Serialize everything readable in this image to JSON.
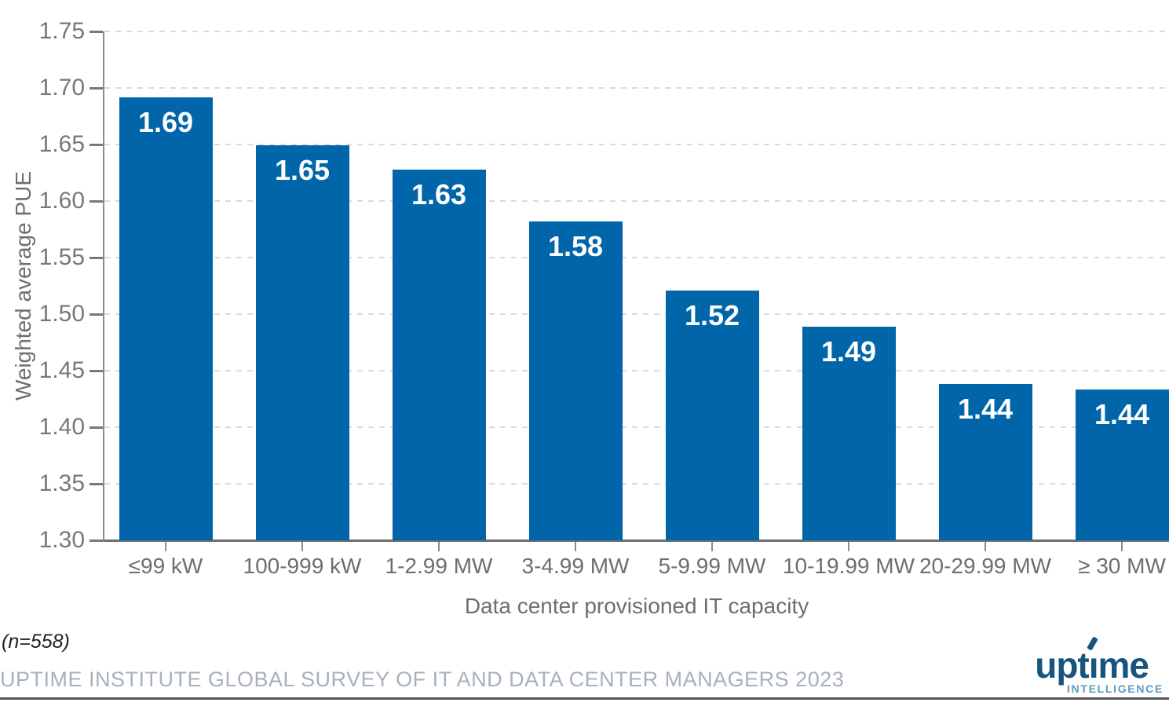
{
  "chart_data": {
    "type": "bar",
    "title": "",
    "categories": [
      "≤99 kW",
      "100-999 kW",
      "1-2.99 MW",
      "3-4.99 MW",
      "5-9.99 MW",
      "10-19.99 MW",
      "20-29.99 MW",
      "≥ 30 MW"
    ],
    "values": [
      1.69,
      1.65,
      1.63,
      1.58,
      1.52,
      1.49,
      1.44,
      1.44
    ],
    "values_precise": [
      1.692,
      1.649,
      1.628,
      1.582,
      1.521,
      1.489,
      1.438,
      1.433
    ],
    "value_labels": [
      "1.69",
      "1.65",
      "1.63",
      "1.58",
      "1.52",
      "1.49",
      "1.44",
      "1.44"
    ],
    "xlabel": "Data center provisioned IT capacity",
    "ylabel": "Weighted average PUE",
    "ylim": [
      1.3,
      1.75
    ],
    "ytick_step": 0.05,
    "yticks": [
      "1.75",
      "1.70",
      "1.65",
      "1.60",
      "1.55",
      "1.50",
      "1.45",
      "1.40",
      "1.35",
      "1.30"
    ],
    "grid": "horizontal-dashed",
    "legend": "none",
    "bar_color": "#0065a9",
    "value_label_color": "#ffffff"
  },
  "footer": {
    "sample_note": "(n=558)",
    "source": "UPTIME INSTITUTE GLOBAL SURVEY OF IT AND DATA CENTER MANAGERS 2023"
  },
  "branding": {
    "logo_pre": "upt",
    "logo_i": "ı",
    "logo_post": "me",
    "logo_sub": "INTELLIGENCE",
    "logo_main_color": "#175580",
    "logo_sub_color": "#5f9bc1"
  },
  "colors": {
    "gridline": "#d7dbdb",
    "axis_line": "#6d6e71",
    "tick_label": "#77787b",
    "axis_title": "#6d6e71",
    "source_text": "#a8b0be",
    "note_text": "#231f20",
    "bottom_rule": "#54565a"
  }
}
